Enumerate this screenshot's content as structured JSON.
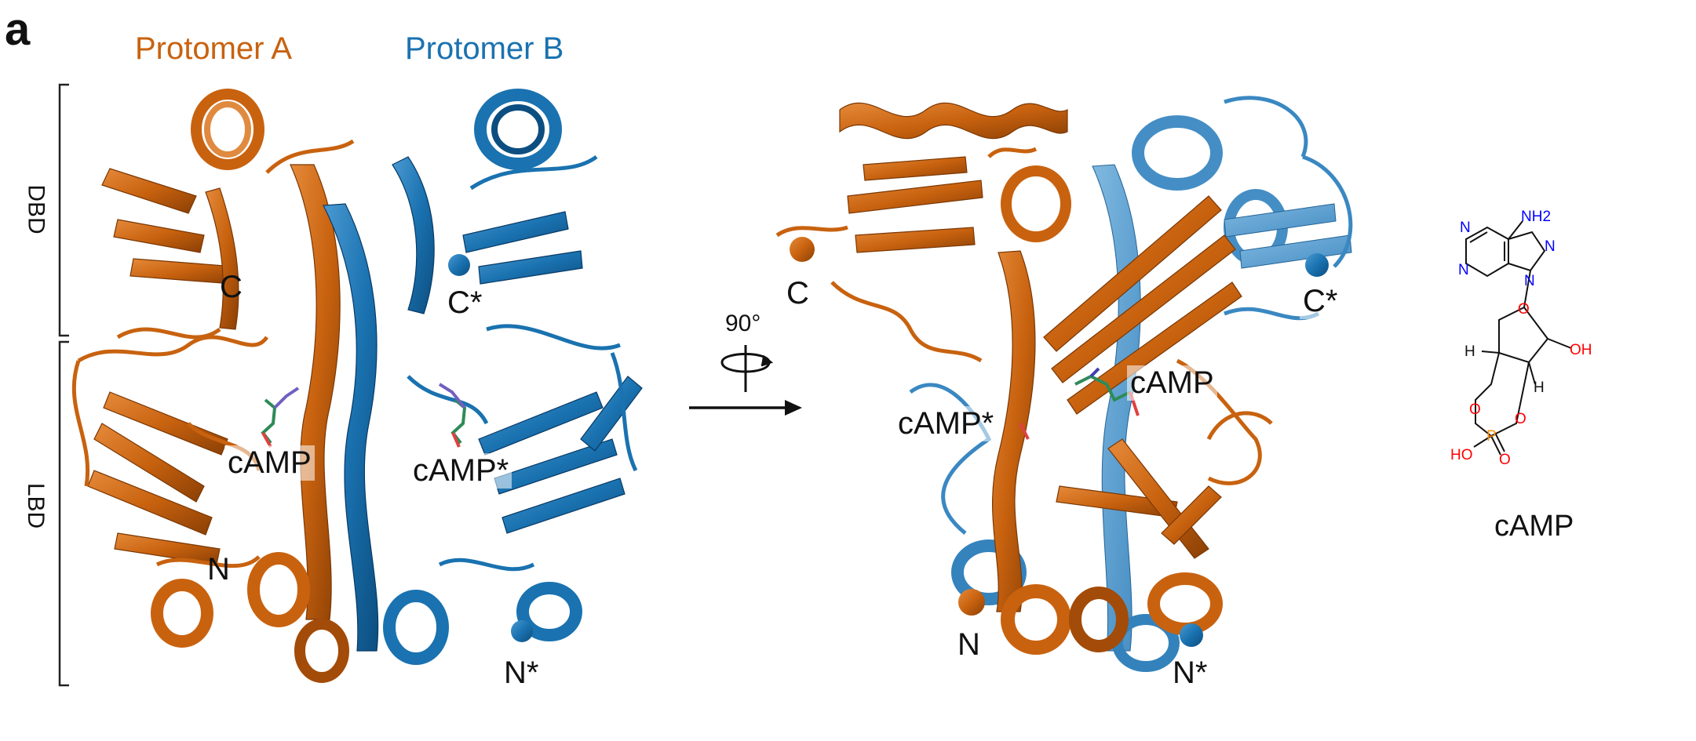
{
  "figure": {
    "panel_label": "a",
    "protomer_a": "Protomer A",
    "protomer_b": "Protomer B",
    "domains": {
      "dbd": "DBD",
      "lbd": "LBD"
    },
    "rotation": "90°",
    "colors": {
      "protomer_a": "#c8620f",
      "protomer_b": "#1a72b0",
      "nitrogen": "#0000ff",
      "oxygen": "#ff0000",
      "phosphorus": "#ff8c00"
    },
    "left_view": {
      "c": "C",
      "c_star": "C*",
      "n": "N",
      "n_star": "N*",
      "camp": "cAMP",
      "camp_star": "cAMP*"
    },
    "right_view": {
      "c": "C",
      "c_star": "C*",
      "n": "N",
      "n_star": "N*",
      "camp": "cAMP",
      "camp_star": "cAMP*"
    },
    "structure": {
      "name": "cAMP",
      "atoms": {
        "n": "N",
        "o": "O",
        "p": "P",
        "nh2": "NH2",
        "oh": "OH",
        "ho": "HO",
        "h": "H"
      }
    }
  }
}
